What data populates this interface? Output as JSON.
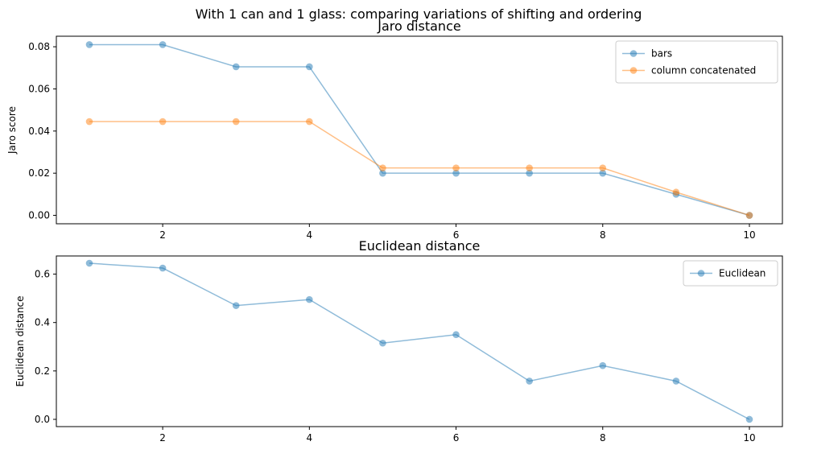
{
  "figure": {
    "suptitle": "With 1 can and 1 glass: comparing variations of shifting and ordering"
  },
  "chart_data": [
    {
      "type": "line",
      "title": "Jaro distance",
      "xlabel": "",
      "ylabel": "Jaro score",
      "xlim": [
        0.55,
        10.45
      ],
      "ylim": [
        -0.004,
        0.085
      ],
      "xticks": [
        2,
        4,
        6,
        8,
        10
      ],
      "yticks": [
        0.0,
        0.02,
        0.04,
        0.06,
        0.08
      ],
      "ytick_decimals": 2,
      "legend_position": "top-right",
      "grid": false,
      "x": [
        1,
        2,
        3,
        4,
        5,
        6,
        7,
        8,
        9,
        10
      ],
      "series": [
        {
          "name": "bars",
          "color": "#1f77b4",
          "values": [
            0.081,
            0.081,
            0.0705,
            0.0705,
            0.02,
            0.02,
            0.02,
            0.02,
            0.01,
            0.0
          ]
        },
        {
          "name": "column concatenated",
          "color": "#ff7f0e",
          "values": [
            0.0445,
            0.0445,
            0.0445,
            0.0445,
            0.0225,
            0.0225,
            0.0225,
            0.0225,
            0.011,
            0.0
          ]
        }
      ]
    },
    {
      "type": "line",
      "title": "Euclidean distance",
      "xlabel": "",
      "ylabel": "Euclidean distance",
      "xlim": [
        0.55,
        10.45
      ],
      "ylim": [
        -0.03,
        0.675
      ],
      "xticks": [
        2,
        4,
        6,
        8,
        10
      ],
      "yticks": [
        0.0,
        0.2,
        0.4,
        0.6
      ],
      "ytick_decimals": 1,
      "legend_position": "top-right",
      "grid": false,
      "x": [
        1,
        2,
        3,
        4,
        5,
        6,
        7,
        8,
        9,
        10
      ],
      "series": [
        {
          "name": "Euclidean",
          "color": "#1f77b4",
          "values": [
            0.645,
            0.625,
            0.47,
            0.495,
            0.315,
            0.35,
            0.158,
            0.222,
            0.158,
            0.0
          ]
        }
      ]
    }
  ]
}
